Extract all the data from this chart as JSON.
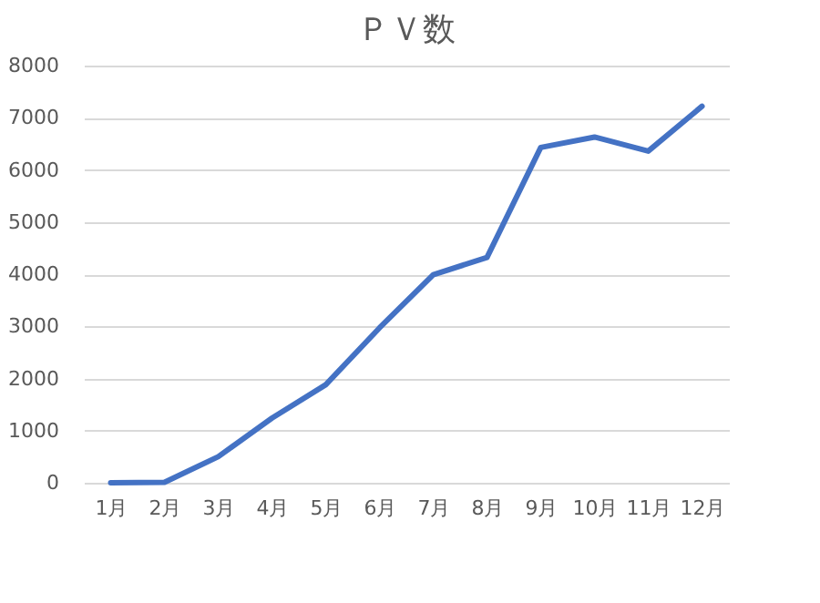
{
  "chart_data": {
    "type": "line",
    "title": "ＰＶ数",
    "categories": [
      "1月",
      "2月",
      "3月",
      "4月",
      "5月",
      "6月",
      "7月",
      "8月",
      "9月",
      "10月",
      "11月",
      "12月"
    ],
    "series": [
      {
        "color": "#4472c4",
        "values": [
          0,
          10,
          500,
          1240,
          1880,
          2970,
          3990,
          4320,
          6430,
          6630,
          6360,
          7220
        ]
      }
    ],
    "ylim": [
      0,
      8000
    ],
    "yticks": [
      0,
      1000,
      2000,
      3000,
      4000,
      5000,
      6000,
      7000,
      8000
    ],
    "grid": "y",
    "marker": "none",
    "line_style": "solid",
    "legend": false
  }
}
